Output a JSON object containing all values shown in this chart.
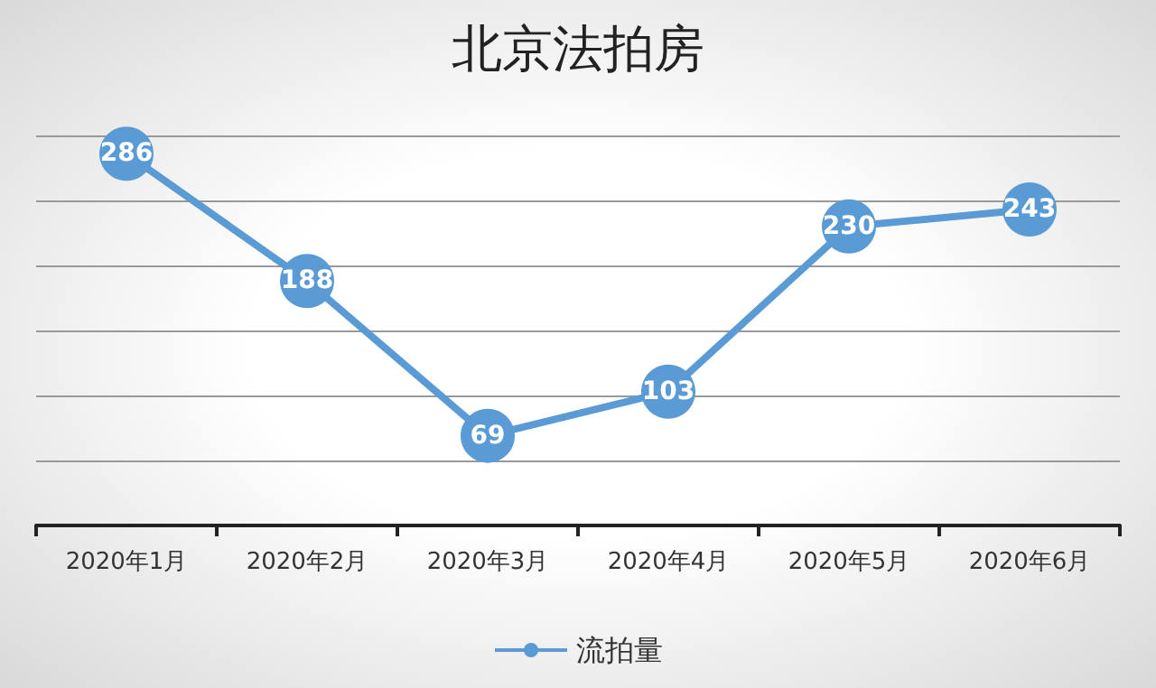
{
  "chart_data": {
    "type": "line",
    "title": "北京法拍房",
    "categories": [
      "2020年1月",
      "2020年2月",
      "2020年3月",
      "2020年4月",
      "2020年5月",
      "2020年6月"
    ],
    "series": [
      {
        "name": "流拍量",
        "color": "#5b9bd5",
        "values": [
          286,
          188,
          69,
          103,
          230,
          243
        ]
      }
    ],
    "ylim": [
      0,
      300
    ],
    "yticks": [
      {
        "value": 0,
        "label": null
      },
      {
        "value": 50,
        "label": null
      },
      {
        "value": 100,
        "label": null
      },
      {
        "value": 150,
        "label": null
      },
      {
        "value": 200,
        "label": null
      },
      {
        "value": 250,
        "label": null
      },
      {
        "value": 300,
        "label": null
      }
    ],
    "grid": "y",
    "legend": "bottom",
    "marker": "circle",
    "data_labels": true,
    "tick_labels": "x"
  }
}
